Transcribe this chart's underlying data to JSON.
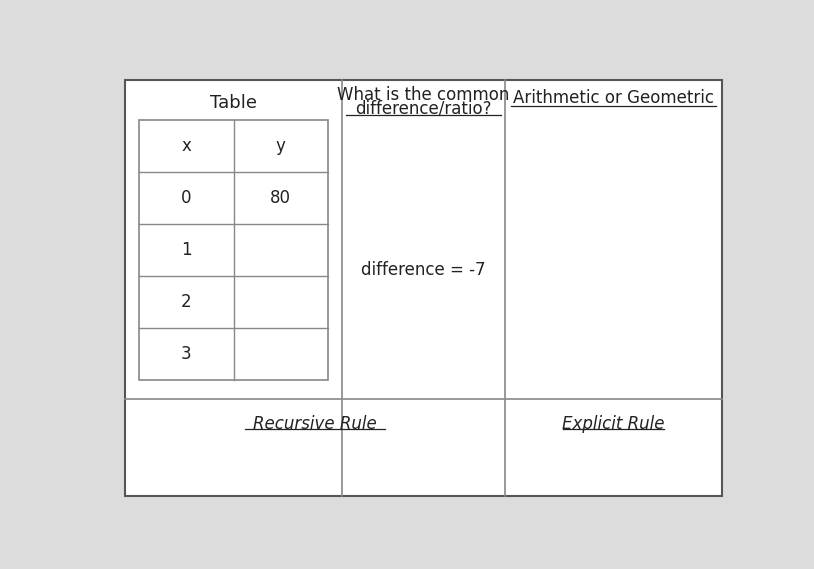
{
  "bg_color": "#dcdcdc",
  "outer_border_color": "#555555",
  "inner_line_color": "#888888",
  "table_header": "Table",
  "col2_header_line1": "What is the common",
  "col2_header_line2": "difference/ratio?",
  "col3_header": "Arithmetic or Geometric",
  "x_label": "x",
  "y_label": "y",
  "x_values": [
    "0",
    "1",
    "2",
    "3"
  ],
  "y_values": [
    "80",
    "",
    "",
    ""
  ],
  "difference_text": "difference = -7",
  "recursive_label": "Recursive Rule",
  "explicit_label": "Explicit Rule",
  "font_color": "#222222",
  "header_underline_color": "#222222",
  "cell_border": "#888888",
  "title_fontsize": 13,
  "header_fontsize": 12,
  "cell_fontsize": 12,
  "label_fontsize": 12
}
